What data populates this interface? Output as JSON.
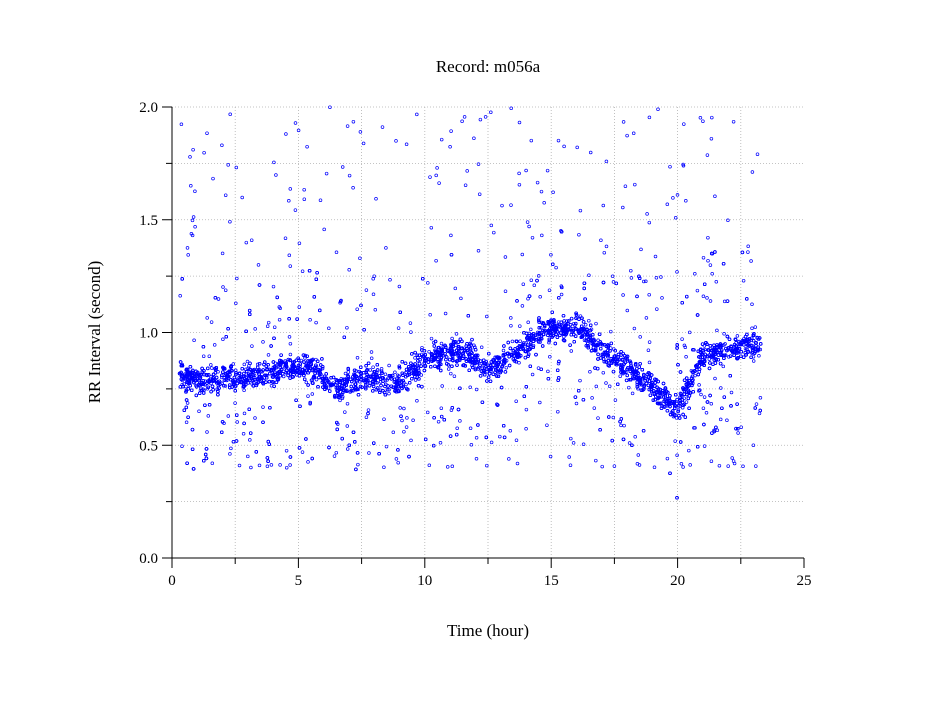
{
  "chart_data": {
    "type": "scatter",
    "title": "Record:  m056a",
    "xlabel": "Time (hour)",
    "ylabel": "RR Interval (second)",
    "xlim": [
      0,
      25
    ],
    "ylim": [
      0,
      2.0
    ],
    "xticks": [
      "0",
      "5",
      "10",
      "15",
      "20",
      "25"
    ],
    "yticks": [
      "0.0",
      "0.5",
      "1.0",
      "1.5",
      "2.0"
    ],
    "xtick_values": [
      0,
      5,
      10,
      15,
      20,
      25
    ],
    "ytick_values": [
      0,
      0.5,
      1.0,
      1.5,
      2.0
    ],
    "grid": true,
    "marker_color": "#0000ff",
    "series": [
      {
        "x_range": [
          0.3,
          23.3
        ],
        "segments": [
          {
            "x": [
              0.3,
              1.0
            ],
            "y": [
              0.82,
              0.78
            ]
          },
          {
            "x": [
              1.0,
              2.0
            ],
            "y": [
              0.78,
              0.8
            ]
          },
          {
            "x": [
              2.0,
              3.0
            ],
            "y": [
              0.8,
              0.8
            ]
          },
          {
            "x": [
              3.0,
              4.5
            ],
            "y": [
              0.8,
              0.84
            ]
          },
          {
            "x": [
              4.5,
              5.5
            ],
            "y": [
              0.84,
              0.84
            ]
          },
          {
            "x": [
              5.5,
              6.5
            ],
            "y": [
              0.84,
              0.76
            ]
          },
          {
            "x": [
              6.5,
              7.5
            ],
            "y": [
              0.76,
              0.8
            ]
          },
          {
            "x": [
              7.5,
              9.0
            ],
            "y": [
              0.8,
              0.78
            ]
          },
          {
            "x": [
              9.0,
              10.0
            ],
            "y": [
              0.78,
              0.88
            ]
          },
          {
            "x": [
              10.0,
              11.5
            ],
            "y": [
              0.88,
              0.92
            ]
          },
          {
            "x": [
              11.5,
              12.5
            ],
            "y": [
              0.92,
              0.84
            ]
          },
          {
            "x": [
              12.5,
              13.5
            ],
            "y": [
              0.84,
              0.9
            ]
          },
          {
            "x": [
              13.5,
              14.5
            ],
            "y": [
              0.9,
              1.0
            ]
          },
          {
            "x": [
              14.5,
              16.0
            ],
            "y": [
              1.0,
              1.03
            ]
          },
          {
            "x": [
              16.0,
              17.0
            ],
            "y": [
              1.03,
              0.93
            ]
          },
          {
            "x": [
              17.0,
              18.5
            ],
            "y": [
              0.93,
              0.8
            ]
          },
          {
            "x": [
              18.5,
              20.0
            ],
            "y": [
              0.8,
              0.66
            ]
          },
          {
            "x": [
              20.0,
              21.0
            ],
            "y": [
              0.66,
              0.9
            ]
          },
          {
            "x": [
              21.0,
              23.3
            ],
            "y": [
              0.9,
              0.95
            ]
          }
        ],
        "band_halfwidth": 0.1,
        "outlier_range": [
          0.4,
          2.0
        ]
      }
    ]
  }
}
